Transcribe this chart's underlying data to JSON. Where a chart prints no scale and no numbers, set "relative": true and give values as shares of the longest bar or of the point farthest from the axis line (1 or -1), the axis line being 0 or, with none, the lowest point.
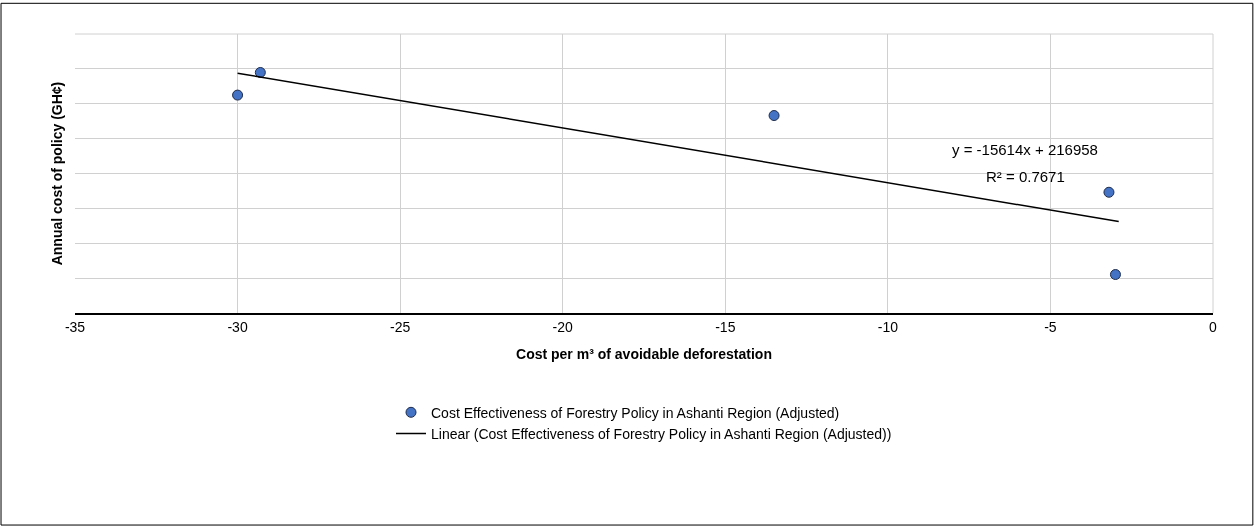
{
  "chart_data": {
    "type": "scatter",
    "relative": true,
    "xlabel": "Cost per m³ of avoidable deforestation",
    "ylabel": "Annual cost of policy (GH¢)",
    "xlim": [
      -35,
      0
    ],
    "xticks": [
      -35,
      -30,
      -25,
      -20,
      -15,
      -10,
      -5,
      0
    ],
    "grid": true,
    "legend": "bottom",
    "marker": "circle",
    "tick_labels": "x",
    "series": [
      {
        "name": "Cost Effectiveness of Forestry Policy in Ashanti Region (Adjusted)",
        "color": "#4472c4",
        "x": [
          -30,
          -29.3,
          -13.5,
          -3.2,
          -3.0
        ],
        "values": [
          0.906,
          1,
          0.821,
          0.502,
          0.16
        ]
      },
      {
        "name": "Linear (Cost Effectiveness of Forestry Policy in Ashanti Region (Adjusted))",
        "type": "line",
        "color": "#000000",
        "line_style": "solid",
        "marker": "none",
        "x": [
          -30,
          -2.9
        ],
        "values": [
          0.997,
          0.38
        ]
      }
    ],
    "annotations": [
      "y = -15614x + 216958",
      "R² = 0.7671"
    ]
  }
}
